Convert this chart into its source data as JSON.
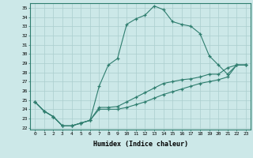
{
  "xlabel": "Humidex (Indice chaleur)",
  "xlim": [
    -0.5,
    23.5
  ],
  "ylim": [
    21.8,
    35.5
  ],
  "yticks": [
    22,
    23,
    24,
    25,
    26,
    27,
    28,
    29,
    30,
    31,
    32,
    33,
    34,
    35
  ],
  "xticks": [
    0,
    1,
    2,
    3,
    4,
    5,
    6,
    7,
    8,
    9,
    10,
    11,
    12,
    13,
    14,
    15,
    16,
    17,
    18,
    19,
    20,
    21,
    22,
    23
  ],
  "line_color": "#2e7d6e",
  "bg_color": "#cce8e8",
  "grid_color": "#aacece",
  "curve1_x": [
    0,
    1,
    2,
    3,
    4,
    5,
    6,
    7,
    8,
    9,
    10,
    11,
    12,
    13,
    14,
    15,
    16,
    17,
    18,
    19,
    20,
    21,
    22,
    23
  ],
  "curve1_y": [
    24.8,
    23.8,
    23.2,
    22.2,
    22.2,
    22.5,
    22.8,
    26.5,
    28.8,
    29.5,
    33.2,
    33.8,
    34.2,
    35.2,
    34.8,
    33.5,
    33.2,
    33.0,
    32.2,
    29.8,
    28.8,
    27.8,
    28.8,
    28.8
  ],
  "curve2_x": [
    0,
    1,
    2,
    3,
    4,
    5,
    6,
    7,
    8,
    9,
    10,
    11,
    12,
    13,
    14,
    15,
    16,
    17,
    18,
    19,
    20,
    21,
    22,
    23
  ],
  "curve2_y": [
    24.8,
    23.8,
    23.2,
    22.2,
    22.2,
    22.5,
    22.8,
    24.2,
    24.2,
    24.3,
    24.8,
    25.3,
    25.8,
    26.3,
    26.8,
    27.0,
    27.2,
    27.3,
    27.5,
    27.8,
    27.8,
    28.5,
    28.8,
    28.8
  ],
  "curve3_x": [
    0,
    1,
    2,
    3,
    4,
    5,
    6,
    7,
    8,
    9,
    10,
    11,
    12,
    13,
    14,
    15,
    16,
    17,
    18,
    19,
    20,
    21,
    22,
    23
  ],
  "curve3_y": [
    24.8,
    23.8,
    23.2,
    22.2,
    22.2,
    22.5,
    22.8,
    24.0,
    24.0,
    24.0,
    24.2,
    24.5,
    24.8,
    25.2,
    25.6,
    25.9,
    26.2,
    26.5,
    26.8,
    27.0,
    27.2,
    27.5,
    28.8,
    28.8
  ]
}
